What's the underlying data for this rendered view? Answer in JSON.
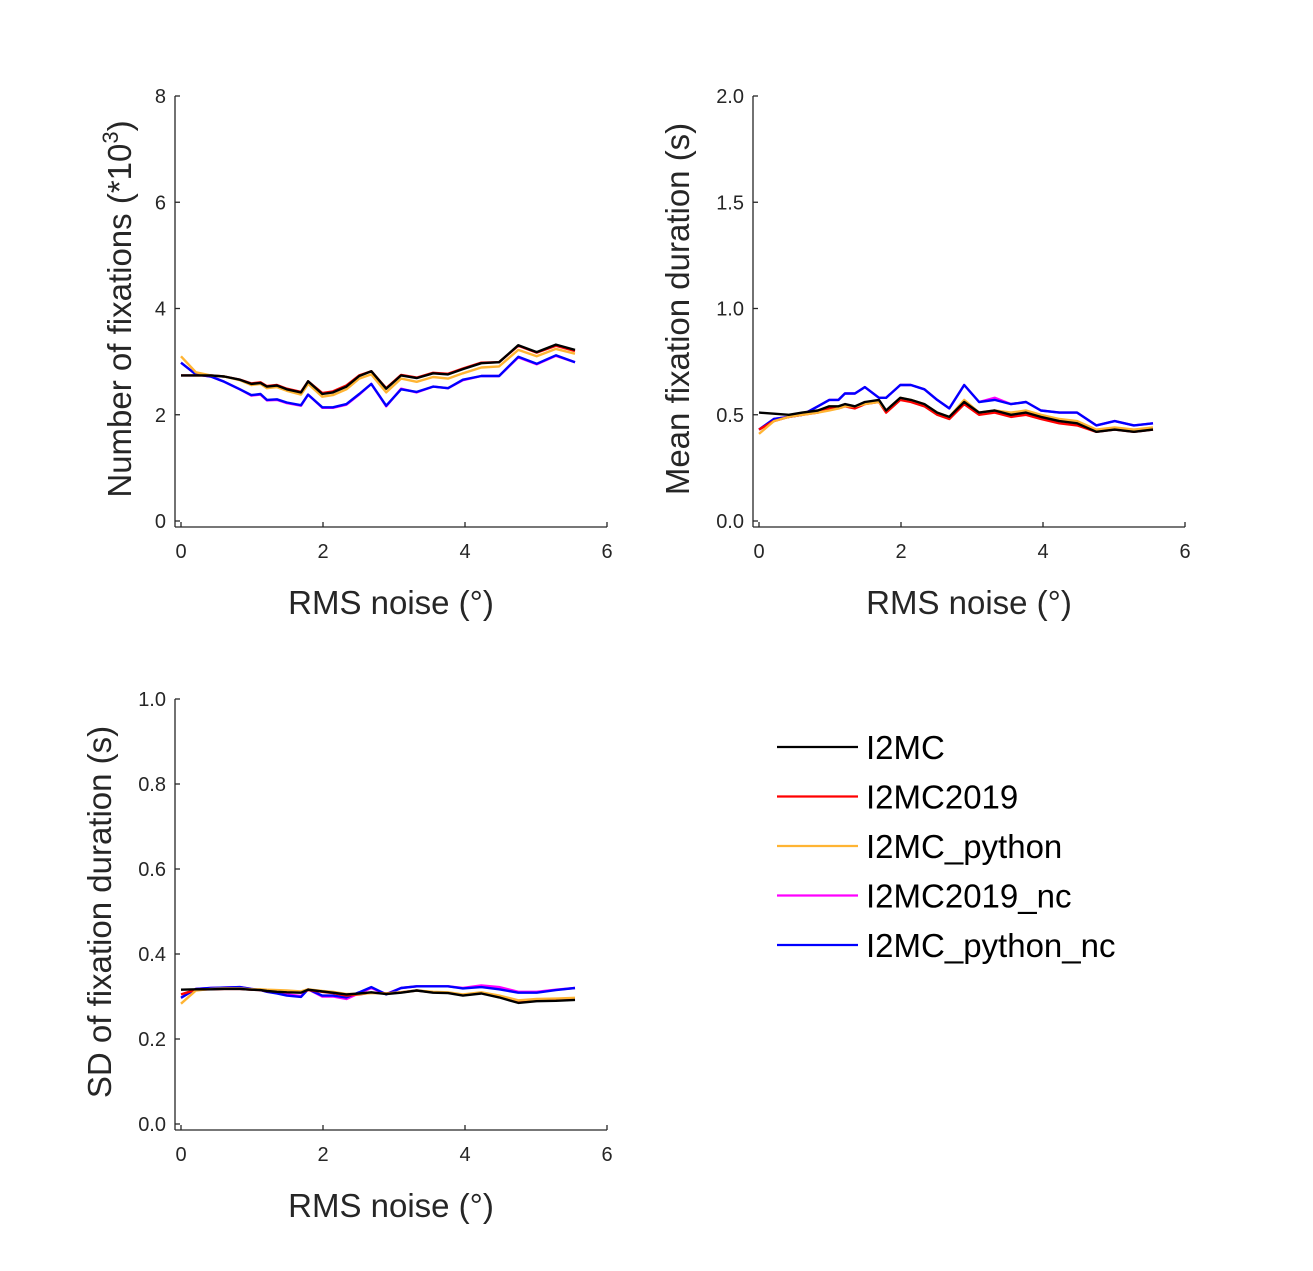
{
  "chart_data": [
    {
      "type": "line",
      "panel": "top-left",
      "title": "",
      "xlabel": "RMS noise (°)",
      "ylabel": "Number of fixations (*10³)",
      "ylabel_base": "Number of fixations (*10",
      "ylabel_sup": "3",
      "ylabel_end": ")",
      "xlim": [
        0,
        6
      ],
      "ylim": [
        0,
        8
      ],
      "xticks": [
        "0",
        "2",
        "4",
        "6"
      ],
      "xtick_values": [
        0,
        2,
        4,
        6
      ],
      "yticks": [
        "0",
        "2",
        "4",
        "6",
        "8"
      ],
      "ytick_values": [
        0,
        2,
        4,
        6,
        8
      ],
      "grid": false,
      "x": [
        0,
        0.21,
        0.42,
        0.61,
        0.83,
        0.99,
        1.12,
        1.21,
        1.35,
        1.49,
        1.69,
        1.79,
        1.99,
        2.14,
        2.33,
        2.51,
        2.68,
        2.89,
        3.1,
        3.32,
        3.55,
        3.76,
        3.97,
        4.23,
        4.48,
        4.75,
        5.01,
        5.28,
        5.55
      ],
      "series": [
        {
          "name": "I2MC",
          "values": [
            2.74,
            2.74,
            2.74,
            2.72,
            2.66,
            2.58,
            2.6,
            2.53,
            2.55,
            2.48,
            2.42,
            2.63,
            2.39,
            2.42,
            2.53,
            2.73,
            2.82,
            2.49,
            2.74,
            2.69,
            2.78,
            2.76,
            2.86,
            2.97,
            2.99,
            3.31,
            3.18,
            3.32,
            3.22
          ]
        },
        {
          "name": "I2MC2019",
          "values": [
            2.74,
            2.74,
            2.74,
            2.72,
            2.66,
            2.59,
            2.61,
            2.54,
            2.56,
            2.49,
            2.43,
            2.63,
            2.41,
            2.44,
            2.55,
            2.74,
            2.82,
            2.5,
            2.75,
            2.7,
            2.79,
            2.77,
            2.87,
            2.98,
            2.99,
            3.3,
            3.17,
            3.3,
            3.2
          ]
        },
        {
          "name": "I2MC_python",
          "values": [
            3.1,
            2.8,
            2.74,
            2.72,
            2.65,
            2.56,
            2.58,
            2.5,
            2.52,
            2.45,
            2.38,
            2.58,
            2.34,
            2.37,
            2.48,
            2.68,
            2.76,
            2.42,
            2.68,
            2.62,
            2.71,
            2.68,
            2.78,
            2.89,
            2.91,
            3.22,
            3.1,
            3.24,
            3.15
          ]
        },
        {
          "name": "I2MC2019_nc",
          "values": [
            2.98,
            2.76,
            2.72,
            2.62,
            2.48,
            2.36,
            2.38,
            2.27,
            2.28,
            2.22,
            2.17,
            2.38,
            2.13,
            2.13,
            2.19,
            2.38,
            2.58,
            2.16,
            2.49,
            2.42,
            2.53,
            2.5,
            2.65,
            2.73,
            2.73,
            3.08,
            2.95,
            3.11,
            2.99
          ]
        },
        {
          "name": "I2MC_python_nc",
          "values": [
            2.98,
            2.76,
            2.72,
            2.62,
            2.48,
            2.37,
            2.39,
            2.28,
            2.29,
            2.23,
            2.18,
            2.38,
            2.14,
            2.14,
            2.2,
            2.39,
            2.58,
            2.17,
            2.48,
            2.43,
            2.53,
            2.5,
            2.66,
            2.73,
            2.73,
            3.09,
            2.96,
            3.12,
            2.99
          ]
        }
      ]
    },
    {
      "type": "line",
      "panel": "top-right",
      "title": "",
      "xlabel": "RMS noise (°)",
      "ylabel": "Mean fixation duration (s)",
      "xlim": [
        0,
        6
      ],
      "ylim": [
        0,
        2
      ],
      "xticks": [
        "0",
        "2",
        "4",
        "6"
      ],
      "xtick_values": [
        0,
        2,
        4,
        6
      ],
      "yticks": [
        "0.0",
        "0.5",
        "1.0",
        "1.5",
        "2.0"
      ],
      "ytick_values": [
        0,
        0.5,
        1.0,
        1.5,
        2.0
      ],
      "grid": false,
      "x": [
        0,
        0.21,
        0.42,
        0.61,
        0.83,
        0.99,
        1.12,
        1.21,
        1.35,
        1.49,
        1.69,
        1.79,
        1.99,
        2.14,
        2.33,
        2.51,
        2.68,
        2.89,
        3.1,
        3.32,
        3.55,
        3.76,
        3.97,
        4.23,
        4.48,
        4.75,
        5.01,
        5.28,
        5.55
      ],
      "series": [
        {
          "name": "I2MC",
          "values": [
            0.51,
            0.505,
            0.5,
            0.51,
            0.52,
            0.54,
            0.54,
            0.55,
            0.54,
            0.56,
            0.57,
            0.52,
            0.58,
            0.57,
            0.55,
            0.51,
            0.49,
            0.56,
            0.51,
            0.52,
            0.5,
            0.51,
            0.49,
            0.47,
            0.46,
            0.42,
            0.43,
            0.42,
            0.43
          ]
        },
        {
          "name": "I2MC2019",
          "values": [
            0.43,
            0.47,
            0.49,
            0.5,
            0.51,
            0.53,
            0.53,
            0.54,
            0.53,
            0.55,
            0.56,
            0.51,
            0.57,
            0.56,
            0.54,
            0.5,
            0.48,
            0.55,
            0.5,
            0.51,
            0.49,
            0.5,
            0.48,
            0.46,
            0.45,
            0.42,
            0.43,
            0.42,
            0.43
          ]
        },
        {
          "name": "I2MC_python",
          "values": [
            0.41,
            0.47,
            0.49,
            0.5,
            0.51,
            0.52,
            0.53,
            0.54,
            0.54,
            0.55,
            0.56,
            0.52,
            0.58,
            0.57,
            0.55,
            0.51,
            0.49,
            0.57,
            0.51,
            0.52,
            0.51,
            0.52,
            0.5,
            0.48,
            0.47,
            0.43,
            0.44,
            0.43,
            0.44
          ]
        },
        {
          "name": "I2MC2019_nc",
          "values": [
            0.43,
            0.48,
            0.49,
            0.5,
            0.54,
            0.57,
            0.57,
            0.6,
            0.6,
            0.63,
            0.58,
            0.58,
            0.64,
            0.64,
            0.62,
            0.57,
            0.53,
            0.64,
            0.56,
            0.58,
            0.55,
            0.56,
            0.52,
            0.51,
            0.51,
            0.45,
            0.47,
            0.45,
            0.46
          ]
        },
        {
          "name": "I2MC_python_nc",
          "values": [
            0.43,
            0.48,
            0.49,
            0.5,
            0.54,
            0.57,
            0.57,
            0.6,
            0.6,
            0.63,
            0.58,
            0.58,
            0.64,
            0.64,
            0.62,
            0.57,
            0.53,
            0.64,
            0.56,
            0.57,
            0.55,
            0.56,
            0.52,
            0.51,
            0.51,
            0.45,
            0.47,
            0.45,
            0.46
          ]
        }
      ]
    },
    {
      "type": "line",
      "panel": "bottom-left",
      "title": "",
      "xlabel": "RMS noise (°)",
      "ylabel": "SD of fixation duration (s)",
      "xlim": [
        0,
        6
      ],
      "ylim": [
        0,
        1
      ],
      "xticks": [
        "0",
        "2",
        "4",
        "6"
      ],
      "xtick_values": [
        0,
        2,
        4,
        6
      ],
      "yticks": [
        "0.0",
        "0.2",
        "0.4",
        "0.6",
        "0.8",
        "1.0"
      ],
      "ytick_values": [
        0,
        0.2,
        0.4,
        0.6,
        0.8,
        1.0
      ],
      "grid": false,
      "x": [
        0,
        0.21,
        0.42,
        0.61,
        0.83,
        0.99,
        1.12,
        1.21,
        1.35,
        1.49,
        1.69,
        1.79,
        1.99,
        2.14,
        2.33,
        2.51,
        2.68,
        2.89,
        3.1,
        3.32,
        3.55,
        3.76,
        3.97,
        4.23,
        4.48,
        4.75,
        5.01,
        5.28,
        5.55
      ],
      "series": [
        {
          "name": "I2MC",
          "values": [
            0.316,
            0.317,
            0.317,
            0.318,
            0.318,
            0.316,
            0.315,
            0.313,
            0.311,
            0.31,
            0.309,
            0.316,
            0.312,
            0.309,
            0.305,
            0.307,
            0.31,
            0.306,
            0.309,
            0.314,
            0.309,
            0.308,
            0.302,
            0.307,
            0.298,
            0.285,
            0.289,
            0.29,
            0.292
          ]
        },
        {
          "name": "I2MC2019",
          "values": [
            0.305,
            0.316,
            0.317,
            0.318,
            0.318,
            0.316,
            0.315,
            0.313,
            0.312,
            0.311,
            0.31,
            0.315,
            0.311,
            0.308,
            0.302,
            0.305,
            0.309,
            0.307,
            0.31,
            0.314,
            0.31,
            0.309,
            0.303,
            0.308,
            0.299,
            0.287,
            0.29,
            0.291,
            0.294
          ]
        },
        {
          "name": "I2MC_python",
          "values": [
            0.283,
            0.314,
            0.318,
            0.319,
            0.319,
            0.317,
            0.317,
            0.316,
            0.315,
            0.314,
            0.312,
            0.317,
            0.313,
            0.311,
            0.306,
            0.306,
            0.308,
            0.307,
            0.31,
            0.314,
            0.311,
            0.31,
            0.305,
            0.31,
            0.302,
            0.291,
            0.294,
            0.295,
            0.297
          ]
        },
        {
          "name": "I2MC2019_nc",
          "values": [
            0.297,
            0.318,
            0.32,
            0.321,
            0.322,
            0.318,
            0.315,
            0.312,
            0.308,
            0.305,
            0.301,
            0.317,
            0.3,
            0.3,
            0.294,
            0.308,
            0.32,
            0.306,
            0.32,
            0.324,
            0.324,
            0.324,
            0.32,
            0.326,
            0.322,
            0.311,
            0.311,
            0.316,
            0.32
          ]
        },
        {
          "name": "I2MC_python_nc",
          "values": [
            0.297,
            0.318,
            0.32,
            0.321,
            0.322,
            0.318,
            0.315,
            0.311,
            0.307,
            0.302,
            0.299,
            0.317,
            0.302,
            0.302,
            0.298,
            0.31,
            0.322,
            0.305,
            0.32,
            0.324,
            0.324,
            0.324,
            0.319,
            0.322,
            0.317,
            0.309,
            0.309,
            0.315,
            0.32
          ]
        }
      ]
    }
  ],
  "legend": {
    "placement": "bottom-right",
    "entries": [
      {
        "name": "I2MC",
        "color": "#000000"
      },
      {
        "name": "I2MC2019",
        "color": "#ff0000"
      },
      {
        "name": "I2MC_python",
        "color": "#ffb433"
      },
      {
        "name": "I2MC2019_nc",
        "color": "#ff00ff"
      },
      {
        "name": "I2MC_python_nc",
        "color": "#0000ff"
      }
    ]
  },
  "colors": {
    "I2MC": "#000000",
    "I2MC2019": "#ff0000",
    "I2MC_python": "#ffb433",
    "I2MC2019_nc": "#ff00ff",
    "I2MC_python_nc": "#0000ff",
    "axis": "#262626"
  }
}
